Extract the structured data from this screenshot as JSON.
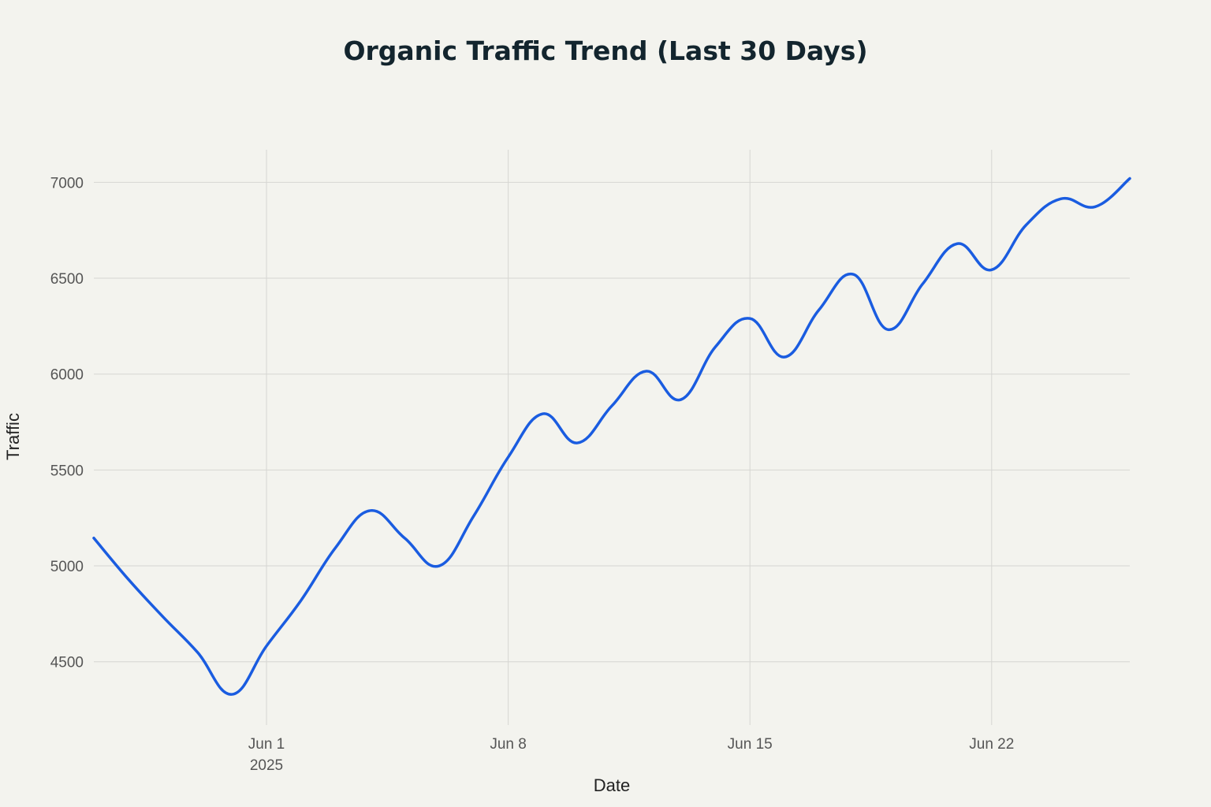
{
  "chart_data": {
    "type": "line",
    "title": "Organic Traffic Trend (Last 30 Days)",
    "xlabel": "Date",
    "ylabel": "Traffic",
    "x_ticks": [
      {
        "date": "2025-06-01",
        "label": "Jun 1",
        "sublabel": "2025"
      },
      {
        "date": "2025-06-08",
        "label": "Jun 8"
      },
      {
        "date": "2025-06-15",
        "label": "Jun 15"
      },
      {
        "date": "2025-06-22",
        "label": "Jun 22"
      }
    ],
    "y_ticks": [
      4500,
      5000,
      5500,
      6000,
      6500,
      7000
    ],
    "ylim": [
      4170,
      7170
    ],
    "xlim": [
      "2025-05-27",
      "2025-06-26"
    ],
    "grid": true,
    "line_color": "#1a5ce0",
    "x": [
      "2025-05-27",
      "2025-05-28",
      "2025-05-29",
      "2025-05-30",
      "2025-05-31",
      "2025-06-01",
      "2025-06-02",
      "2025-06-03",
      "2025-06-04",
      "2025-06-05",
      "2025-06-06",
      "2025-06-07",
      "2025-06-08",
      "2025-06-09",
      "2025-06-10",
      "2025-06-11",
      "2025-06-12",
      "2025-06-13",
      "2025-06-14",
      "2025-06-15",
      "2025-06-16",
      "2025-06-17",
      "2025-06-18",
      "2025-06-19",
      "2025-06-20",
      "2025-06-21",
      "2025-06-22",
      "2025-06-23",
      "2025-06-24",
      "2025-06-25",
      "2025-06-26"
    ],
    "values": [
      5145,
      4930,
      4735,
      4550,
      4330,
      4582,
      4820,
      5095,
      5288,
      5145,
      5000,
      5260,
      5567,
      5793,
      5641,
      5834,
      6015,
      5867,
      6142,
      6290,
      6089,
      6335,
      6520,
      6232,
      6470,
      6680,
      6544,
      6778,
      6914,
      6873,
      7020
    ]
  }
}
